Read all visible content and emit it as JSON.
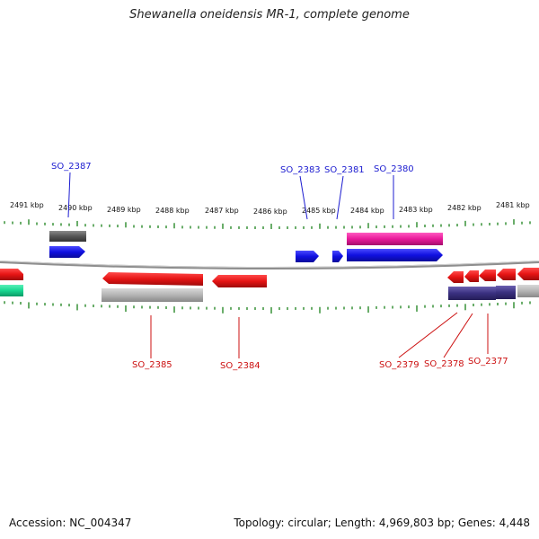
{
  "title": "Shewanella oneidensis MR-1, complete genome",
  "footer": {
    "accession": "Accession: NC_004347",
    "stats": "Topology: circular; Length: 4,969,803 bp; Genes: 4,448"
  },
  "scale_labels": [
    "2491 kbp",
    "2490 kbp",
    "2489 kbp",
    "2488 kbp",
    "2487 kbp",
    "2486 kbp",
    "2485 kbp",
    "2484 kbp",
    "2483 kbp",
    "2482 kbp",
    "2481 kbp"
  ],
  "gene_labels_top": [
    "SO_2387",
    "SO_2383",
    "SO_2381",
    "SO_2380"
  ],
  "gene_labels_bottom": [
    "SO_2385",
    "SO_2384",
    "SO_2379",
    "SO_2378",
    "SO_2377"
  ],
  "colors": {
    "forward_cds": "#1414e0",
    "reverse_cds": "#e61414",
    "pink": "#e8199a",
    "navy": "#3a3080",
    "teal": "#17d690",
    "gray": "#b4b4b4",
    "dark_gray": "#5a5a5a",
    "backbone": "#888888",
    "ticks": "#2a8a2a",
    "label_top": "#1c1cd0",
    "label_bottom": "#cc1111"
  }
}
